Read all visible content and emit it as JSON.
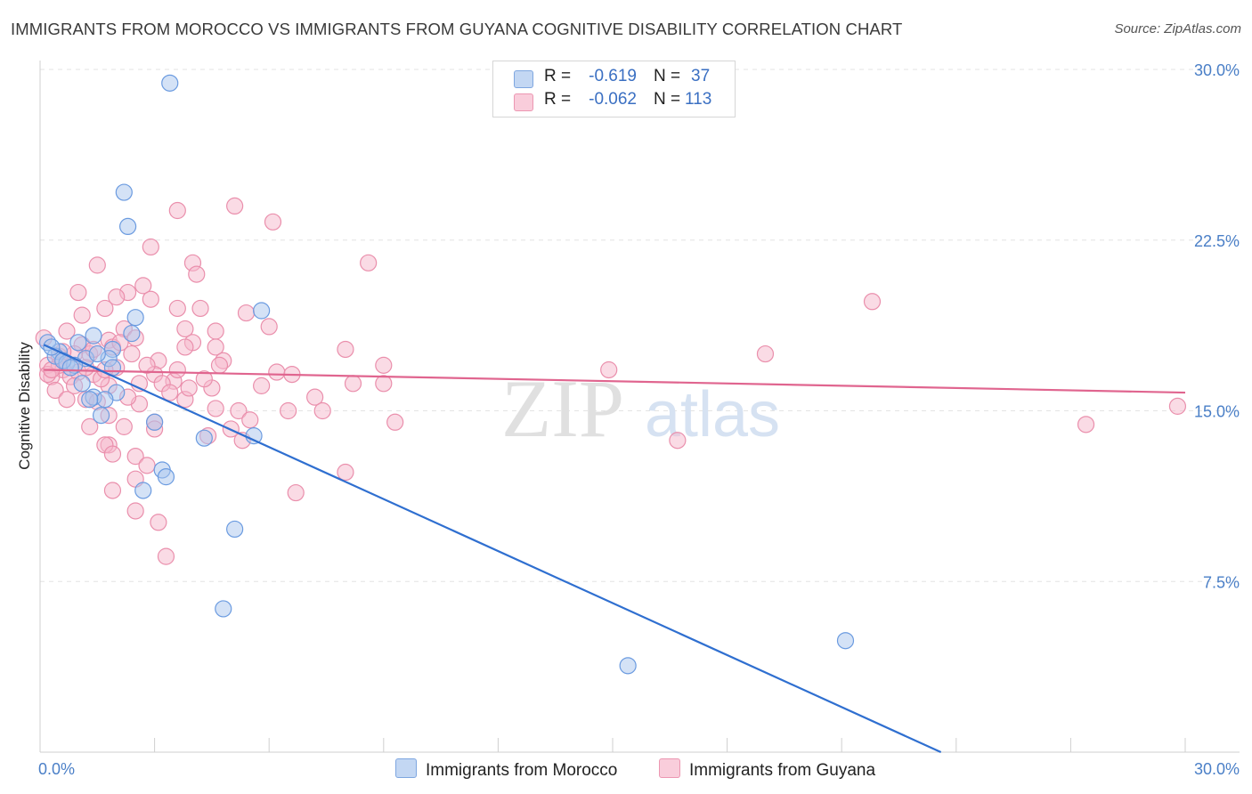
{
  "title": "IMMIGRANTS FROM MOROCCO VS IMMIGRANTS FROM GUYANA COGNITIVE DISABILITY CORRELATION CHART",
  "source": "Source: ZipAtlas.com",
  "watermark": {
    "zip": "ZIP",
    "atlas": "atlas"
  },
  "legend": {
    "r_label": "R =",
    "n_label": "N =",
    "morocco": {
      "r": "-0.619",
      "n": "37"
    },
    "guyana": {
      "r": "-0.062",
      "n": "113"
    }
  },
  "colors": {
    "morocco_fill": "#a9c6ee",
    "morocco_stroke": "#6b9be0",
    "morocco_line": "#2f6fd0",
    "guyana_fill": "#f6b8cc",
    "guyana_stroke": "#ea8fac",
    "guyana_line": "#e0658f",
    "tick_label": "#4a7fc7",
    "grid": "#e3e3e3"
  },
  "chart_data": {
    "type": "scatter",
    "title": "IMMIGRANTS FROM MOROCCO VS IMMIGRANTS FROM GUYANA COGNITIVE DISABILITY CORRELATION CHART",
    "xlabel": "",
    "ylabel": "Cognitive Disability",
    "xlim": [
      0,
      30
    ],
    "ylim": [
      0,
      30
    ],
    "x_tick_labels": [
      "0.0%",
      "30.0%"
    ],
    "y_ticks": [
      7.5,
      15.0,
      22.5,
      30.0
    ],
    "y_tick_labels": [
      "7.5%",
      "15.0%",
      "22.5%",
      "30.0%"
    ],
    "grid": "horizontal dashed",
    "legend_position": "top-center",
    "series": [
      {
        "name": "Immigrants from Morocco",
        "trend": {
          "x": [
            0.1,
            23.6
          ],
          "y": [
            17.9,
            0.0
          ]
        },
        "points": [
          [
            3.4,
            29.4
          ],
          [
            2.2,
            24.6
          ],
          [
            2.3,
            23.1
          ],
          [
            5.8,
            19.4
          ],
          [
            2.5,
            19.1
          ],
          [
            2.4,
            18.4
          ],
          [
            1.4,
            18.3
          ],
          [
            0.2,
            18.0
          ],
          [
            1.0,
            18.0
          ],
          [
            1.9,
            17.7
          ],
          [
            0.5,
            17.6
          ],
          [
            0.4,
            17.4
          ],
          [
            1.8,
            17.3
          ],
          [
            1.2,
            17.3
          ],
          [
            0.7,
            17.1
          ],
          [
            0.9,
            17.0
          ],
          [
            1.9,
            16.9
          ],
          [
            1.1,
            16.2
          ],
          [
            2.0,
            15.8
          ],
          [
            1.4,
            15.6
          ],
          [
            1.7,
            15.5
          ],
          [
            1.3,
            15.5
          ],
          [
            1.6,
            14.8
          ],
          [
            3.0,
            14.5
          ],
          [
            4.3,
            13.8
          ],
          [
            5.6,
            13.9
          ],
          [
            3.2,
            12.4
          ],
          [
            3.3,
            12.1
          ],
          [
            2.7,
            11.5
          ],
          [
            5.1,
            9.8
          ],
          [
            4.8,
            6.3
          ],
          [
            15.4,
            3.8
          ],
          [
            21.1,
            4.9
          ],
          [
            0.3,
            17.8
          ],
          [
            0.6,
            17.2
          ],
          [
            1.5,
            17.5
          ],
          [
            0.8,
            16.9
          ]
        ]
      },
      {
        "name": "Immigrants from Guyana",
        "trend": {
          "x": [
            0.1,
            30.0
          ],
          "y": [
            16.8,
            15.8
          ]
        },
        "points": [
          [
            5.1,
            24.0
          ],
          [
            3.6,
            23.8
          ],
          [
            6.1,
            23.3
          ],
          [
            2.9,
            22.2
          ],
          [
            8.6,
            21.5
          ],
          [
            4.0,
            21.5
          ],
          [
            1.5,
            21.4
          ],
          [
            4.1,
            21.0
          ],
          [
            2.7,
            20.5
          ],
          [
            1.0,
            20.2
          ],
          [
            2.3,
            20.2
          ],
          [
            2.0,
            20.0
          ],
          [
            21.8,
            19.8
          ],
          [
            3.6,
            19.5
          ],
          [
            1.7,
            19.5
          ],
          [
            4.2,
            19.5
          ],
          [
            5.4,
            19.3
          ],
          [
            1.1,
            19.2
          ],
          [
            2.9,
            19.9
          ],
          [
            6.0,
            18.7
          ],
          [
            0.7,
            18.5
          ],
          [
            2.2,
            18.6
          ],
          [
            3.8,
            18.6
          ],
          [
            4.6,
            18.5
          ],
          [
            2.5,
            18.2
          ],
          [
            0.1,
            18.2
          ],
          [
            1.8,
            18.1
          ],
          [
            4.0,
            18.0
          ],
          [
            1.1,
            17.9
          ],
          [
            1.9,
            17.8
          ],
          [
            4.6,
            17.8
          ],
          [
            3.8,
            17.8
          ],
          [
            8.0,
            17.7
          ],
          [
            2.4,
            17.5
          ],
          [
            0.5,
            17.4
          ],
          [
            1.3,
            17.5
          ],
          [
            0.9,
            17.5
          ],
          [
            19.0,
            17.5
          ],
          [
            4.8,
            17.2
          ],
          [
            3.1,
            17.2
          ],
          [
            9.0,
            17.0
          ],
          [
            14.9,
            16.8
          ],
          [
            0.2,
            17.0
          ],
          [
            2.0,
            16.9
          ],
          [
            0.6,
            16.8
          ],
          [
            6.2,
            16.7
          ],
          [
            6.6,
            16.6
          ],
          [
            3.0,
            16.6
          ],
          [
            1.4,
            16.6
          ],
          [
            0.3,
            16.5
          ],
          [
            0.8,
            16.5
          ],
          [
            3.5,
            16.3
          ],
          [
            3.2,
            16.2
          ],
          [
            9.0,
            16.2
          ],
          [
            8.2,
            16.2
          ],
          [
            5.8,
            16.1
          ],
          [
            4.5,
            16.0
          ],
          [
            1.8,
            16.1
          ],
          [
            0.4,
            15.9
          ],
          [
            3.4,
            15.8
          ],
          [
            7.2,
            15.6
          ],
          [
            1.2,
            15.5
          ],
          [
            3.8,
            15.5
          ],
          [
            0.7,
            15.5
          ],
          [
            1.5,
            15.4
          ],
          [
            2.6,
            15.3
          ],
          [
            4.6,
            15.1
          ],
          [
            5.2,
            15.0
          ],
          [
            7.4,
            15.0
          ],
          [
            6.5,
            15.0
          ],
          [
            1.8,
            14.8
          ],
          [
            3.0,
            14.5
          ],
          [
            9.3,
            14.5
          ],
          [
            27.4,
            14.4
          ],
          [
            2.2,
            14.3
          ],
          [
            1.3,
            14.3
          ],
          [
            3.0,
            14.2
          ],
          [
            5.0,
            14.2
          ],
          [
            4.4,
            13.9
          ],
          [
            5.3,
            13.7
          ],
          [
            16.7,
            13.7
          ],
          [
            1.8,
            13.5
          ],
          [
            1.7,
            13.5
          ],
          [
            1.9,
            13.1
          ],
          [
            2.5,
            13.0
          ],
          [
            2.8,
            12.6
          ],
          [
            8.0,
            12.3
          ],
          [
            2.5,
            12.0
          ],
          [
            1.9,
            11.5
          ],
          [
            6.7,
            11.4
          ],
          [
            2.5,
            10.6
          ],
          [
            3.1,
            10.1
          ],
          [
            3.3,
            8.6
          ],
          [
            29.8,
            15.2
          ],
          [
            0.5,
            17.0
          ],
          [
            1.0,
            16.7
          ],
          [
            0.2,
            16.6
          ],
          [
            1.6,
            16.4
          ],
          [
            2.1,
            18.0
          ],
          [
            2.8,
            17.0
          ],
          [
            0.9,
            16.1
          ],
          [
            1.4,
            17.7
          ],
          [
            3.6,
            16.8
          ],
          [
            4.3,
            16.4
          ],
          [
            5.5,
            14.6
          ],
          [
            0.6,
            17.6
          ],
          [
            1.2,
            16.9
          ],
          [
            2.3,
            15.6
          ],
          [
            0.3,
            16.8
          ],
          [
            1.7,
            16.8
          ],
          [
            2.6,
            16.2
          ],
          [
            3.9,
            16.0
          ],
          [
            4.7,
            17.0
          ]
        ]
      }
    ]
  }
}
